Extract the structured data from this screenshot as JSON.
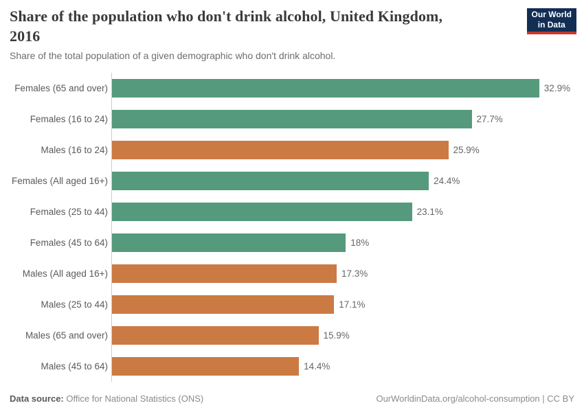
{
  "header": {
    "title_line1": "Share of the population who don't drink alcohol, United Kingdom,",
    "title_line2": "2016",
    "subtitle": "Share of the total population of a given demographic who don't drink alcohol.",
    "logo": {
      "line1": "Our World",
      "line2": "in Data"
    }
  },
  "chart_data": {
    "type": "bar",
    "orientation": "horizontal",
    "title": "Share of the population who don't drink alcohol, United Kingdom, 2016",
    "subtitle": "Share of the total population of a given demographic who don't drink alcohol.",
    "unit": "%",
    "xlim": [
      0,
      32.9
    ],
    "grid": false,
    "legend": "none",
    "categories": [
      "Females (65 and over)",
      "Females (16 to 24)",
      "Males (16 to 24)",
      "Females (All aged 16+)",
      "Females (25 to 44)",
      "Females (45 to 64)",
      "Males (All aged 16+)",
      "Males (25 to 44)",
      "Males (65 and over)",
      "Males (45 to 64)"
    ],
    "values": [
      32.9,
      27.7,
      25.9,
      24.4,
      23.1,
      18,
      17.3,
      17.1,
      15.9,
      14.4
    ],
    "rows": [
      {
        "label": "Females (65 and over)",
        "value": 32.9,
        "display": "32.9%",
        "group": "female"
      },
      {
        "label": "Females (16 to 24)",
        "value": 27.7,
        "display": "27.7%",
        "group": "female"
      },
      {
        "label": "Males (16 to 24)",
        "value": 25.9,
        "display": "25.9%",
        "group": "male"
      },
      {
        "label": "Females (All aged 16+)",
        "value": 24.4,
        "display": "24.4%",
        "group": "female"
      },
      {
        "label": "Females (25 to 44)",
        "value": 23.1,
        "display": "23.1%",
        "group": "female"
      },
      {
        "label": "Females (45 to 64)",
        "value": 18,
        "display": "18%",
        "group": "female"
      },
      {
        "label": "Males (All aged 16+)",
        "value": 17.3,
        "display": "17.3%",
        "group": "male"
      },
      {
        "label": "Males (25 to 44)",
        "value": 17.1,
        "display": "17.1%",
        "group": "male"
      },
      {
        "label": "Males (65 and over)",
        "value": 15.9,
        "display": "15.9%",
        "group": "male"
      },
      {
        "label": "Males (45 to 64)",
        "value": 14.4,
        "display": "14.4%",
        "group": "male"
      }
    ],
    "colors": {
      "female": "#559a7d",
      "male": "#cc7a44"
    },
    "axis_color": "#cccccc"
  },
  "footer": {
    "source_label": "Data source:",
    "source_text": " Office for National Statistics (ONS)",
    "credit": "OurWorldinData.org/alcohol-consumption | CC BY"
  }
}
